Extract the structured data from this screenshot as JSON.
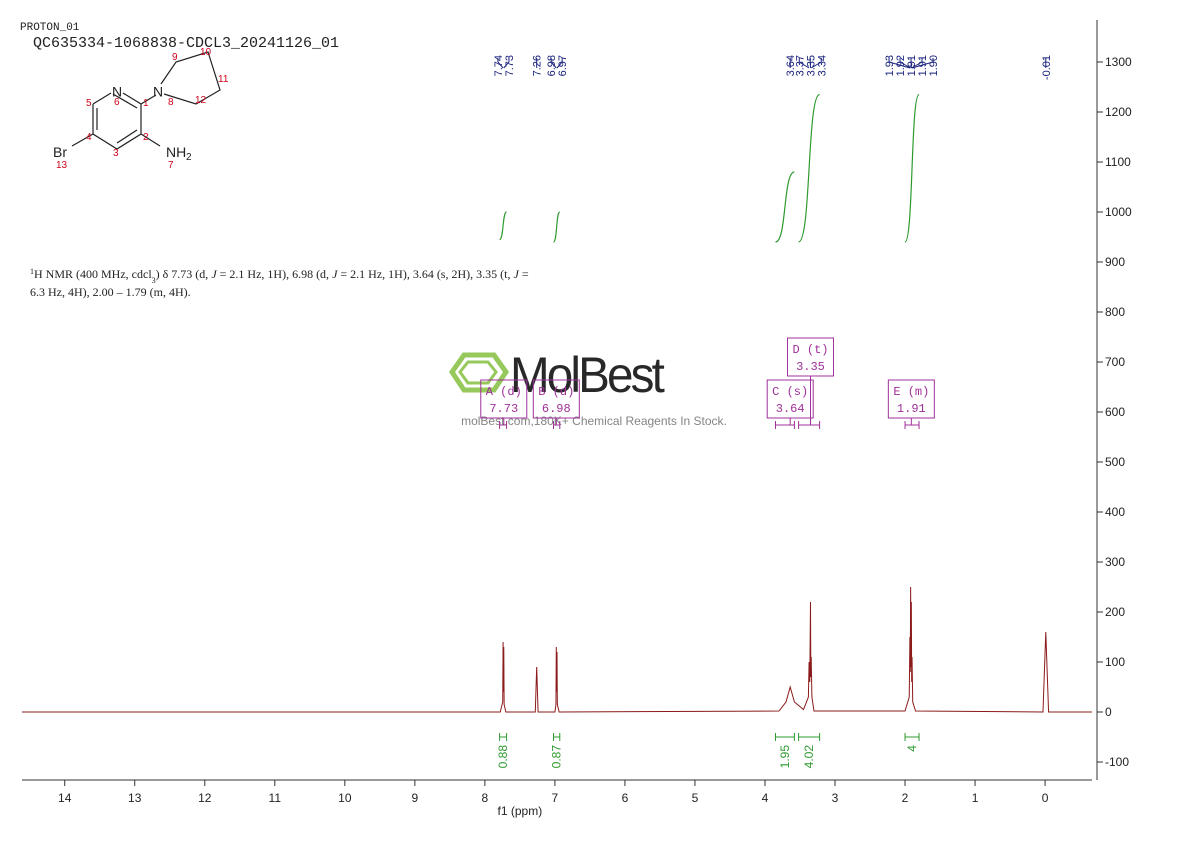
{
  "header": {
    "experiment": "PROTON_01",
    "sample": "QC635334-1068838-CDCL3_20241126_01"
  },
  "structure": {
    "labels": [
      "N",
      "N",
      "NH",
      "2",
      "Br",
      "1",
      "2",
      "3",
      "4",
      "5",
      "6",
      "7",
      "8",
      "9",
      "10",
      "11",
      "12",
      "13"
    ]
  },
  "description": {
    "line1": [
      "1",
      "H NMR (400 MHz, cdcl",
      "3",
      ") δ 7.73 (d, ",
      "J",
      " = 2.1 Hz, 1H), 6.98 (d, ",
      "J",
      " = 2.1 Hz, 1H), 3.64 (s, 2H), 3.35 (t, ",
      "J",
      " ="
    ],
    "line2": "6.3 Hz, 4H), 2.00 – 1.79 (m, 4H)."
  },
  "watermark": {
    "brand": "MolBest",
    "tagline": "molBest.com,180K+ Chemical Reagents In Stock."
  },
  "chart_data": {
    "type": "spectrum",
    "xlabel": "f1 (ppm)",
    "color": "#8b1a1a",
    "xlim": [
      14.61,
      -0.67
    ],
    "xticks": [
      14,
      13,
      12,
      11,
      10,
      9,
      8,
      7,
      6,
      5,
      4,
      3,
      2,
      1,
      0
    ],
    "ylim": [
      -136,
      1384
    ],
    "yticks": [
      -100,
      0,
      100,
      200,
      300,
      400,
      500,
      600,
      700,
      800,
      900,
      1000,
      1100,
      1200,
      1300
    ],
    "x": [
      14.61,
      7.78,
      7.745,
      7.74,
      7.735,
      7.73,
      7.725,
      7.7,
      7.28,
      7.26,
      7.24,
      7.0,
      6.985,
      6.98,
      6.975,
      6.97,
      6.965,
      6.94,
      3.8,
      3.7,
      3.64,
      3.58,
      3.45,
      3.38,
      3.37,
      3.36,
      3.35,
      3.345,
      3.34,
      3.33,
      3.3,
      2.0,
      1.94,
      1.93,
      1.925,
      1.92,
      1.915,
      1.91,
      1.905,
      1.9,
      1.89,
      1.85,
      0.03,
      -0.01,
      -0.05,
      -0.67
    ],
    "values": [
      0,
      0,
      20,
      140,
      40,
      130,
      15,
      0,
      0,
      90,
      0,
      0,
      15,
      130,
      40,
      120,
      15,
      0,
      2,
      20,
      50,
      20,
      5,
      30,
      100,
      60,
      220,
      70,
      110,
      30,
      2,
      2,
      30,
      150,
      80,
      250,
      90,
      220,
      60,
      110,
      20,
      2,
      0,
      160,
      0,
      0
    ],
    "peak_labels": [
      7.74,
      7.73,
      7.26,
      6.98,
      6.97,
      3.64,
      3.37,
      3.35,
      3.34,
      1.93,
      1.92,
      1.91,
      1.91,
      {
        "value": 1.9,
        "label": "1.90"
      },
      -0.01
    ],
    "peak_color": "#1a237e",
    "integral_color": "#2e9a2e",
    "integrals": [
      {
        "from": 7.79,
        "to": 7.69,
        "value": 0.88,
        "curve": [
          945,
          1000
        ]
      },
      {
        "from": 7.02,
        "to": 6.93,
        "value": 0.87,
        "curve": [
          940,
          1000
        ]
      },
      {
        "from": 3.85,
        "to": 3.58,
        "value": 1.95,
        "curve": [
          940,
          1080
        ]
      },
      {
        "from": 3.52,
        "to": 3.22,
        "value": 4.02,
        "curve": [
          940,
          1235
        ]
      },
      {
        "from": 2.0,
        "to": 1.8,
        "value": 4.0,
        "curve": [
          940,
          1235
        ]
      }
    ],
    "multiplet_color": "#a0309a",
    "multiplets": [
      {
        "name": "A (d)",
        "shift": 7.73
      },
      {
        "name": "B (d)",
        "shift": 6.98
      },
      {
        "name": "C (s)",
        "shift": 3.64
      },
      {
        "name": "D (t)",
        "shift": 3.35
      },
      {
        "name": "E (m)",
        "shift": 1.91
      }
    ]
  }
}
